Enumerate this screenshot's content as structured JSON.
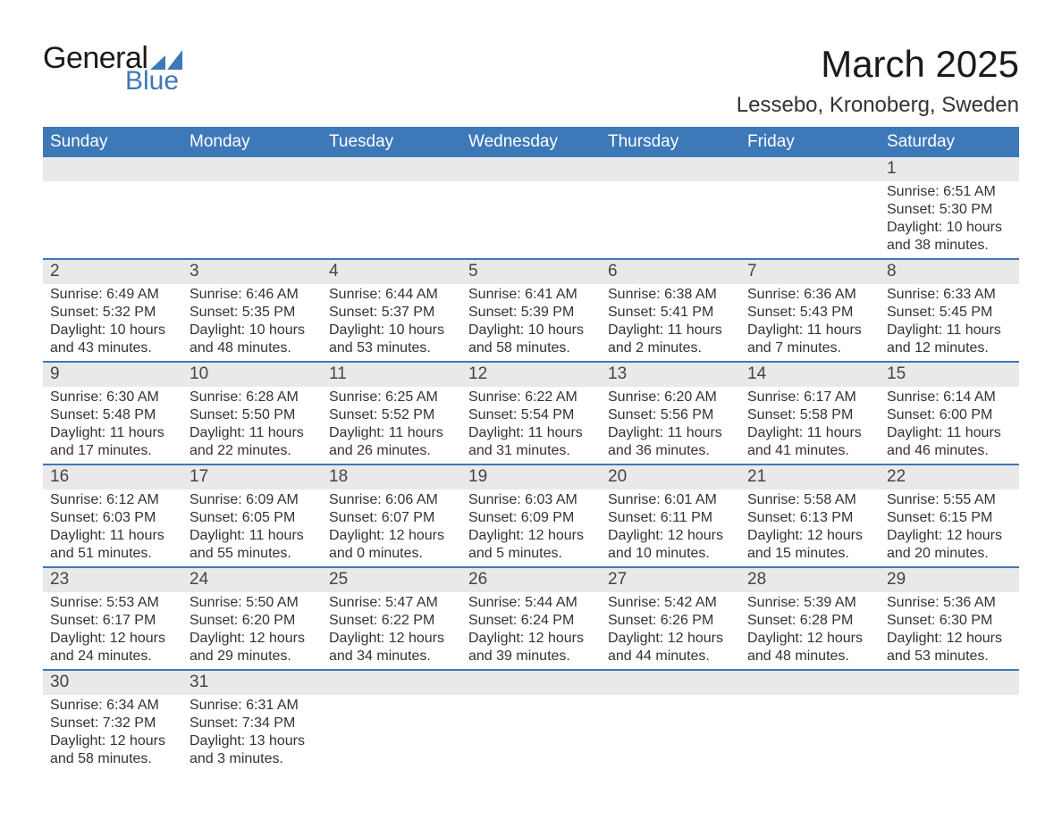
{
  "brand": {
    "word1": "General",
    "word2": "Blue",
    "text_color": "#1a1a1a",
    "accent_color": "#3d78b8"
  },
  "title": "March 2025",
  "location": "Lessebo, Kronoberg, Sweden",
  "colors": {
    "header_bg": "#3d78b8",
    "header_text": "#ffffff",
    "daynum_bg": "#e9e9e9",
    "row_divider": "#3d78b8",
    "body_text": "#333333",
    "page_bg": "#ffffff"
  },
  "typography": {
    "month_title_fontsize": 42,
    "location_fontsize": 24,
    "weekday_fontsize": 19,
    "daynum_fontsize": 19,
    "body_fontsize": 16,
    "font_family": "Arial"
  },
  "weekdays": [
    "Sunday",
    "Monday",
    "Tuesday",
    "Wednesday",
    "Thursday",
    "Friday",
    "Saturday"
  ],
  "labels": {
    "sunrise": "Sunrise:",
    "sunset": "Sunset:",
    "daylight": "Daylight:"
  },
  "weeks": [
    [
      null,
      null,
      null,
      null,
      null,
      null,
      {
        "d": "1",
        "sunrise": "6:51 AM",
        "sunset": "5:30 PM",
        "daylight": "10 hours and 38 minutes."
      }
    ],
    [
      {
        "d": "2",
        "sunrise": "6:49 AM",
        "sunset": "5:32 PM",
        "daylight": "10 hours and 43 minutes."
      },
      {
        "d": "3",
        "sunrise": "6:46 AM",
        "sunset": "5:35 PM",
        "daylight": "10 hours and 48 minutes."
      },
      {
        "d": "4",
        "sunrise": "6:44 AM",
        "sunset": "5:37 PM",
        "daylight": "10 hours and 53 minutes."
      },
      {
        "d": "5",
        "sunrise": "6:41 AM",
        "sunset": "5:39 PM",
        "daylight": "10 hours and 58 minutes."
      },
      {
        "d": "6",
        "sunrise": "6:38 AM",
        "sunset": "5:41 PM",
        "daylight": "11 hours and 2 minutes."
      },
      {
        "d": "7",
        "sunrise": "6:36 AM",
        "sunset": "5:43 PM",
        "daylight": "11 hours and 7 minutes."
      },
      {
        "d": "8",
        "sunrise": "6:33 AM",
        "sunset": "5:45 PM",
        "daylight": "11 hours and 12 minutes."
      }
    ],
    [
      {
        "d": "9",
        "sunrise": "6:30 AM",
        "sunset": "5:48 PM",
        "daylight": "11 hours and 17 minutes."
      },
      {
        "d": "10",
        "sunrise": "6:28 AM",
        "sunset": "5:50 PM",
        "daylight": "11 hours and 22 minutes."
      },
      {
        "d": "11",
        "sunrise": "6:25 AM",
        "sunset": "5:52 PM",
        "daylight": "11 hours and 26 minutes."
      },
      {
        "d": "12",
        "sunrise": "6:22 AM",
        "sunset": "5:54 PM",
        "daylight": "11 hours and 31 minutes."
      },
      {
        "d": "13",
        "sunrise": "6:20 AM",
        "sunset": "5:56 PM",
        "daylight": "11 hours and 36 minutes."
      },
      {
        "d": "14",
        "sunrise": "6:17 AM",
        "sunset": "5:58 PM",
        "daylight": "11 hours and 41 minutes."
      },
      {
        "d": "15",
        "sunrise": "6:14 AM",
        "sunset": "6:00 PM",
        "daylight": "11 hours and 46 minutes."
      }
    ],
    [
      {
        "d": "16",
        "sunrise": "6:12 AM",
        "sunset": "6:03 PM",
        "daylight": "11 hours and 51 minutes."
      },
      {
        "d": "17",
        "sunrise": "6:09 AM",
        "sunset": "6:05 PM",
        "daylight": "11 hours and 55 minutes."
      },
      {
        "d": "18",
        "sunrise": "6:06 AM",
        "sunset": "6:07 PM",
        "daylight": "12 hours and 0 minutes."
      },
      {
        "d": "19",
        "sunrise": "6:03 AM",
        "sunset": "6:09 PM",
        "daylight": "12 hours and 5 minutes."
      },
      {
        "d": "20",
        "sunrise": "6:01 AM",
        "sunset": "6:11 PM",
        "daylight": "12 hours and 10 minutes."
      },
      {
        "d": "21",
        "sunrise": "5:58 AM",
        "sunset": "6:13 PM",
        "daylight": "12 hours and 15 minutes."
      },
      {
        "d": "22",
        "sunrise": "5:55 AM",
        "sunset": "6:15 PM",
        "daylight": "12 hours and 20 minutes."
      }
    ],
    [
      {
        "d": "23",
        "sunrise": "5:53 AM",
        "sunset": "6:17 PM",
        "daylight": "12 hours and 24 minutes."
      },
      {
        "d": "24",
        "sunrise": "5:50 AM",
        "sunset": "6:20 PM",
        "daylight": "12 hours and 29 minutes."
      },
      {
        "d": "25",
        "sunrise": "5:47 AM",
        "sunset": "6:22 PM",
        "daylight": "12 hours and 34 minutes."
      },
      {
        "d": "26",
        "sunrise": "5:44 AM",
        "sunset": "6:24 PM",
        "daylight": "12 hours and 39 minutes."
      },
      {
        "d": "27",
        "sunrise": "5:42 AM",
        "sunset": "6:26 PM",
        "daylight": "12 hours and 44 minutes."
      },
      {
        "d": "28",
        "sunrise": "5:39 AM",
        "sunset": "6:28 PM",
        "daylight": "12 hours and 48 minutes."
      },
      {
        "d": "29",
        "sunrise": "5:36 AM",
        "sunset": "6:30 PM",
        "daylight": "12 hours and 53 minutes."
      }
    ],
    [
      {
        "d": "30",
        "sunrise": "6:34 AM",
        "sunset": "7:32 PM",
        "daylight": "12 hours and 58 minutes."
      },
      {
        "d": "31",
        "sunrise": "6:31 AM",
        "sunset": "7:34 PM",
        "daylight": "13 hours and 3 minutes."
      },
      null,
      null,
      null,
      null,
      null
    ]
  ]
}
